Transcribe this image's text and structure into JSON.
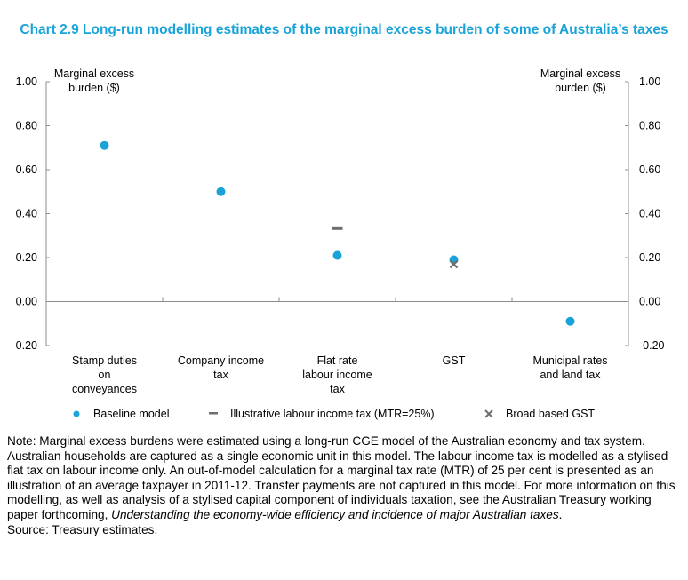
{
  "title": "Chart 2.9 Long-run modelling estimates of the marginal excess burden of some of Australia’s taxes",
  "chart_data": {
    "type": "scatter",
    "title": "Chart 2.9 Long-run modelling estimates of the marginal excess burden of some of Australia’s taxes",
    "ylabel_left": [
      "Marginal excess",
      "burden ($)"
    ],
    "ylabel_right": [
      "Marginal excess",
      "burden ($)"
    ],
    "ylim": [
      -0.2,
      1.0
    ],
    "yticks": [
      "1.00",
      "0.80",
      "0.60",
      "0.40",
      "0.20",
      "0.00",
      "-0.20"
    ],
    "ytick_values": [
      1.0,
      0.8,
      0.6,
      0.4,
      0.2,
      0.0,
      -0.2
    ],
    "categories": [
      [
        "Stamp duties",
        "on",
        "conveyances"
      ],
      [
        "Company income",
        "tax"
      ],
      [
        "Flat rate",
        "labour income",
        "tax"
      ],
      [
        "GST"
      ],
      [
        "Municipal rates",
        "and land tax"
      ]
    ],
    "series": [
      {
        "name": "Baseline model",
        "marker": "circle",
        "color": "#1aa3d8",
        "values": [
          0.71,
          0.5,
          0.21,
          0.19,
          -0.09
        ]
      },
      {
        "name": "Illustrative labour income tax (MTR=25%)",
        "marker": "dash",
        "color": "#6d6e71",
        "values": [
          null,
          null,
          0.33,
          null,
          null
        ]
      },
      {
        "name": "Broad based GST",
        "marker": "x",
        "color": "#6d6e71",
        "values": [
          null,
          null,
          null,
          0.17,
          null
        ]
      }
    ],
    "legend_position": "bottom",
    "grid": false
  },
  "notes": {
    "note_main": "Note: Marginal excess burdens were estimated using a long-run CGE model of the Australian economy and tax system. Australian households are captured as a single economic unit in this model. The labour income tax is modelled as a stylised flat tax on labour income only. An out-of-model calculation for a marginal tax rate (MTR) of 25 per cent is presented as an illustration of an average taxpayer in 2011-12. Transfer payments are not captured in this model. For more information on this modelling, as well as analysis of a stylised capital component of individuals taxation, see the Australian Treasury working paper forthcoming, ",
    "note_italic": "Understanding the economy-wide efficiency and incidence of major Australian taxes",
    "note_end": ".",
    "source": "Source: Treasury estimates."
  }
}
